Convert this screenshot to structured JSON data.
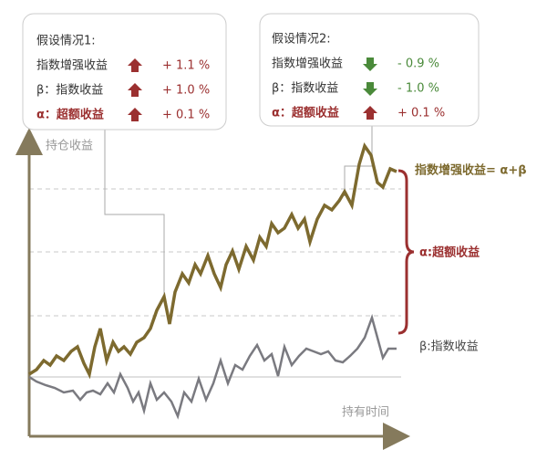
{
  "scenarios": [
    {
      "title": "假设情况1:",
      "rows": [
        {
          "label": "指数增强收益",
          "value": "+ 1.1 %"
        },
        {
          "label": "β：指数收益",
          "value": "+ 1.0 %"
        },
        {
          "label": "α：超额收益",
          "value": "+ 0.1 %"
        }
      ]
    },
    {
      "title": "假设情况2:",
      "rows": [
        {
          "label": "指数增强收益",
          "value": "- 0.9 %"
        },
        {
          "label": "β：指数收益",
          "value": "- 1.0 %"
        },
        {
          "label": "α：超额收益",
          "value": "+ 0.1 %"
        }
      ]
    }
  ],
  "axes": {
    "y_label": "持仓收益",
    "x_label": "持有时间"
  },
  "annotations": {
    "enhanced": "指数增强收益= α+β",
    "alpha": "α:超额收益",
    "beta": "β:指数收益"
  }
}
